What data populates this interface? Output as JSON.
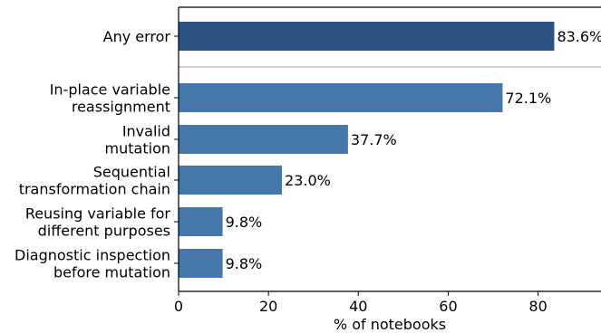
{
  "chart_data": {
    "type": "bar",
    "orientation": "horizontal",
    "categories": [
      [
        "Any error"
      ],
      [
        "In-place variable",
        "reassignment"
      ],
      [
        "Invalid",
        "mutation"
      ],
      [
        "Sequential",
        "transformation chain"
      ],
      [
        "Reusing variable for",
        "different purposes"
      ],
      [
        "Diagnostic inspection",
        "before mutation"
      ]
    ],
    "values": [
      83.6,
      72.1,
      37.7,
      23.0,
      9.8,
      9.8
    ],
    "value_labels": [
      "83.6%",
      "72.1%",
      "37.7%",
      "23.0%",
      "9.8%",
      "9.8%"
    ],
    "xlabel": "% of notebooks",
    "ylabel": "",
    "title": "",
    "xlim": [
      0,
      94
    ],
    "xticks": [
      0,
      20,
      40,
      60,
      80
    ],
    "separator_after_first": true,
    "colors": {
      "highlight": "#2d5383",
      "bars": "#4677aa",
      "separator": "#a0a0a0"
    },
    "grid": false
  }
}
